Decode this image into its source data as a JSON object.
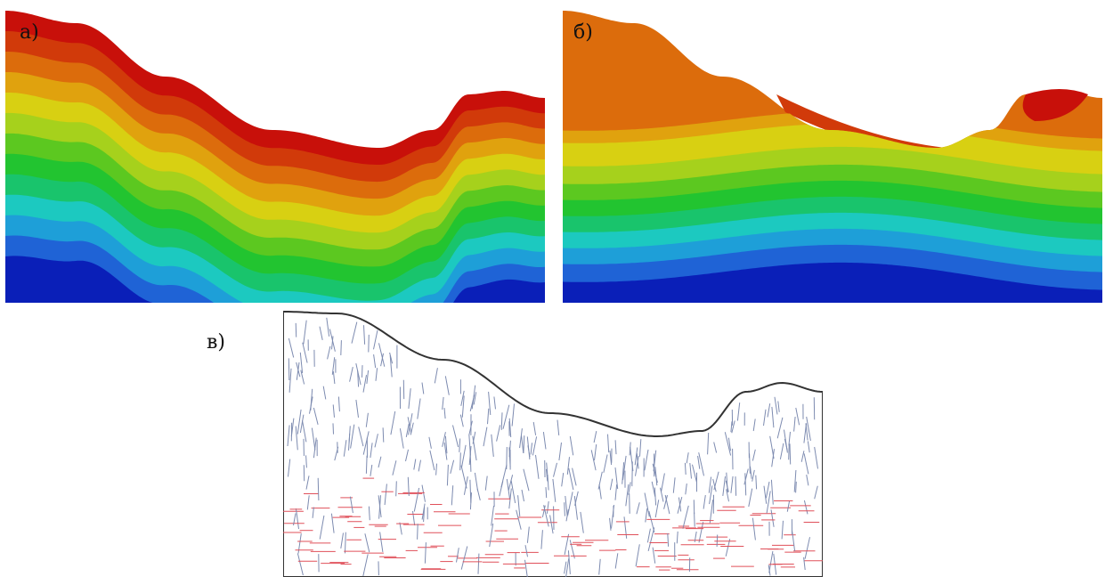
{
  "labels": {
    "a": "а)",
    "b": "б)",
    "c": "в)"
  },
  "colors": {
    "bands": [
      "#0a1fb8",
      "#1f63d6",
      "#1e9fd8",
      "#1cc9c0",
      "#19c46c",
      "#22c430",
      "#5cc820",
      "#a6d11c",
      "#d8d012",
      "#e0a20e",
      "#dc6c0c",
      "#d13a0a",
      "#c8100a"
    ],
    "outline": "#333333",
    "tick_blue": "#7d8bb0",
    "tick_red": "#e0505a"
  }
}
